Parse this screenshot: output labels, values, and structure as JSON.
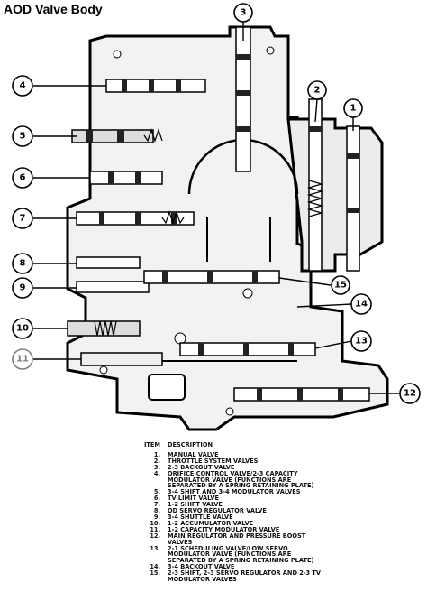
{
  "header": {
    "title": "AOD Valve Body"
  },
  "callouts": [
    "1",
    "2",
    "3",
    "4",
    "5",
    "6",
    "7",
    "8",
    "9",
    "10",
    "11",
    "12",
    "13",
    "14",
    "15"
  ],
  "legend": {
    "columns": [
      "ITEM",
      "DESCRIPTION"
    ],
    "items": [
      {
        "item": "1.",
        "description": "MANUAL VALVE"
      },
      {
        "item": "2.",
        "description": "THROTTLE SYSTEM VALVES"
      },
      {
        "item": "3.",
        "description": "2-3 BACKOUT VALVE"
      },
      {
        "item": "4.",
        "description": "ORIFICE CONTROL VALVE/2-3 CAPACITY MODULATOR VALVE (FUNCTIONS ARE SEPARATED BY A SPRING RETAINING PLATE)"
      },
      {
        "item": "5.",
        "description": "3-4 SHIFT AND 3-4 MODULATOR VALVES"
      },
      {
        "item": "6.",
        "description": "TV LIMIT VALVE"
      },
      {
        "item": "7.",
        "description": "1-2 SHIFT VALVE"
      },
      {
        "item": "8.",
        "description": "OD SERVO REGULATOR VALVE"
      },
      {
        "item": "9.",
        "description": "3-4 SHUTTLE VALVE"
      },
      {
        "item": "10.",
        "description": "1-2 ACCUMULATOR VALVE"
      },
      {
        "item": "11.",
        "description": "1-2 CAPACITY MODULATOR VALVE"
      },
      {
        "item": "12.",
        "description": "MAIN REGULATOR AND PRESSURE BOOST VALVES"
      },
      {
        "item": "13.",
        "description": "2-1 SCHEDULING VALVE/LOW SERVO MODULATOR VALVE (FUNCTIONS ARE SEPARATED BY A SPRING RETAINING PLATE)"
      },
      {
        "item": "14.",
        "description": "3-4 BACKOUT VALVE"
      },
      {
        "item": "15.",
        "description": "2-3 SHIFT, 2-3 SERVO REGULATOR AND 2-3 TV MODULATOR VALVES"
      }
    ]
  }
}
